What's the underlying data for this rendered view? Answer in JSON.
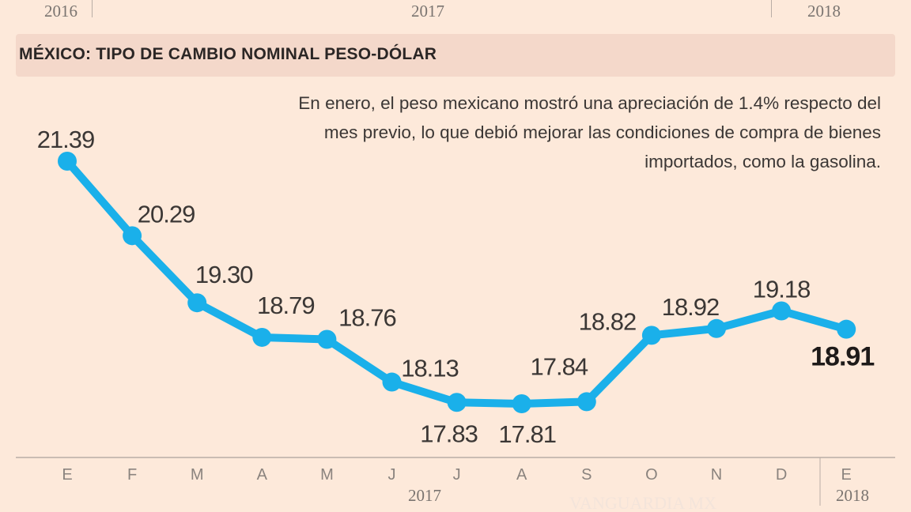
{
  "header_years": [
    "2016",
    "2017",
    "2018"
  ],
  "title": "MÉXICO: TIPO DE CAMBIO NOMINAL PESO-DÓLAR",
  "note": "En enero, el peso mexicano mostró una apreciación de 1.4% respecto del mes previo, lo que debió mejorar las condiciones de compra de bienes importados, como la gasolina.",
  "watermark": "VANGUARDIA MX",
  "colors": {
    "line": "#1ab0ea",
    "background": "#fde9da",
    "title_band": "#f4d8ca"
  },
  "chart_data": {
    "type": "line",
    "title": "MÉXICO: TIPO DE CAMBIO NOMINAL PESO-DÓLAR",
    "categories": [
      "E",
      "F",
      "M",
      "A",
      "M",
      "J",
      "J",
      "A",
      "S",
      "O",
      "N",
      "D",
      "E"
    ],
    "year_labels": [
      "2017",
      "2018"
    ],
    "values": [
      21.39,
      20.29,
      19.3,
      18.79,
      18.76,
      18.13,
      17.83,
      17.81,
      17.84,
      18.82,
      18.92,
      19.18,
      18.91
    ],
    "data_labels": [
      "21.39",
      "20.29",
      "19.30",
      "18.79",
      "18.76",
      "18.13",
      "17.83",
      "17.81",
      "17.84",
      "18.82",
      "18.92",
      "19.18",
      "18.91"
    ],
    "grid": false,
    "markers": true
  }
}
